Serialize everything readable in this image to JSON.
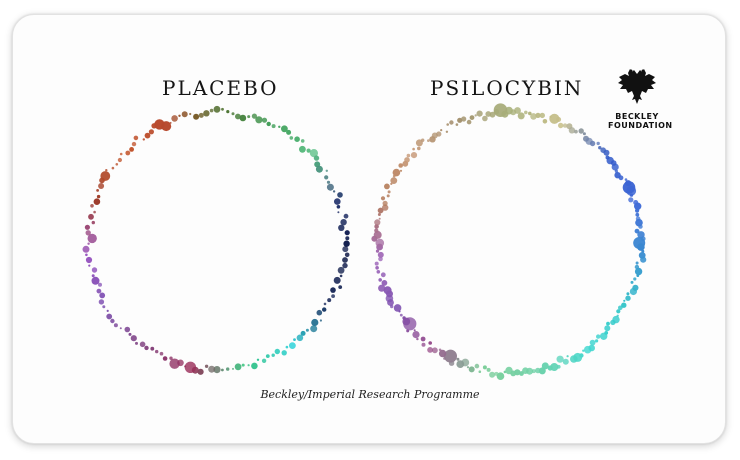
{
  "panels": {
    "placebo_label": "PLACEBO",
    "psilocybin_label": "PSILOCYBIN"
  },
  "logo": {
    "line1": "BECKLEY",
    "line2": "FOUNDATION",
    "icon": "double-headed-eagle-icon"
  },
  "caption": "Beckley/Imperial Research Programme",
  "colors": {
    "placebo_ring": [
      "#4f6b2a",
      "#3c9a52",
      "#5bbf85",
      "#1e2f6a",
      "#0d1845",
      "#1a2a5c",
      "#2ad1d8",
      "#33c07a",
      "#9a2f5a",
      "#7a3a7a",
      "#7b4fb0",
      "#9b58c2",
      "#9c3b2a",
      "#c4562a",
      "#b7482d"
    ],
    "psilocybin_ring": [
      "#a7b07a",
      "#c9c08a",
      "#2f58c8",
      "#4069d8",
      "#3a8fd0",
      "#2fc6c8",
      "#40d7d0",
      "#6fd1a8",
      "#7fcf9a",
      "#9a4f8a",
      "#7b4fb0",
      "#a066b8",
      "#b37a5a",
      "#c89a78",
      "#a48f6e"
    ]
  }
}
